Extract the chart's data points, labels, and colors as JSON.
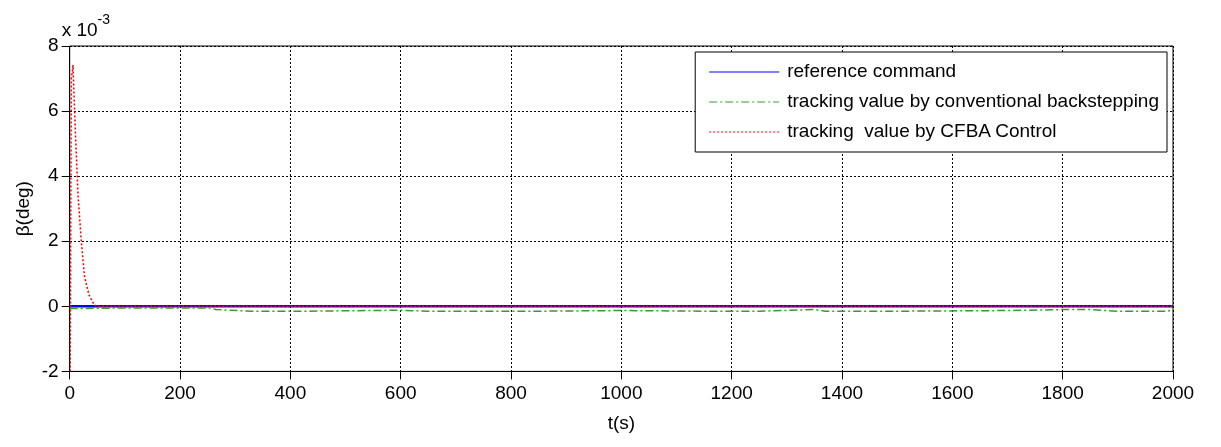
{
  "chart_data": {
    "type": "line",
    "xlabel": "t(s)",
    "ylabel": "β(deg)",
    "annotations": [
      "x 10$^{-3}$"
    ],
    "xlim": [
      0,
      2000
    ],
    "xticks": [
      0,
      200,
      400,
      600,
      800,
      1000,
      1200,
      1400,
      1600,
      1800,
      2000
    ],
    "ylim": [
      -2,
      8
    ],
    "yticks": [
      -2,
      0,
      2,
      4,
      6,
      8
    ],
    "grid": true,
    "legend": "top right",
    "marker": "none",
    "series": [
      {
        "name": "reference command",
        "color": "#0000ff",
        "line_style": "solid",
        "x": [
          0,
          2000
        ],
        "values": [
          0,
          0
        ]
      },
      {
        "name": "tracking value by conventional backstepping",
        "color": "#2ca02c",
        "line_style": "dashed",
        "x": [
          0,
          100,
          255,
          265,
          330,
          430,
          600,
          650,
          850,
          1000,
          1150,
          1250,
          1350,
          1370,
          1500,
          1700,
          1800,
          1850,
          1900,
          1990,
          2000
        ],
        "values": [
          -0.07,
          -0.05,
          -0.05,
          -0.1,
          -0.15,
          -0.15,
          -0.12,
          -0.15,
          -0.15,
          -0.13,
          -0.15,
          -0.15,
          -0.1,
          -0.15,
          -0.15,
          -0.13,
          -0.1,
          -0.1,
          -0.15,
          -0.15,
          -0.1
        ]
      },
      {
        "name": "tracking  value by CFBA Control",
        "color": "#ff0000",
        "line_style": "dotted",
        "x": [
          1,
          2,
          3,
          6,
          10,
          15,
          21,
          27,
          35,
          42,
          48,
          100,
          2000
        ],
        "values": [
          -2,
          3,
          7,
          7.4,
          5.5,
          3.45,
          2,
          0.9,
          0.35,
          0.12,
          0,
          0,
          0
        ]
      }
    ]
  }
}
